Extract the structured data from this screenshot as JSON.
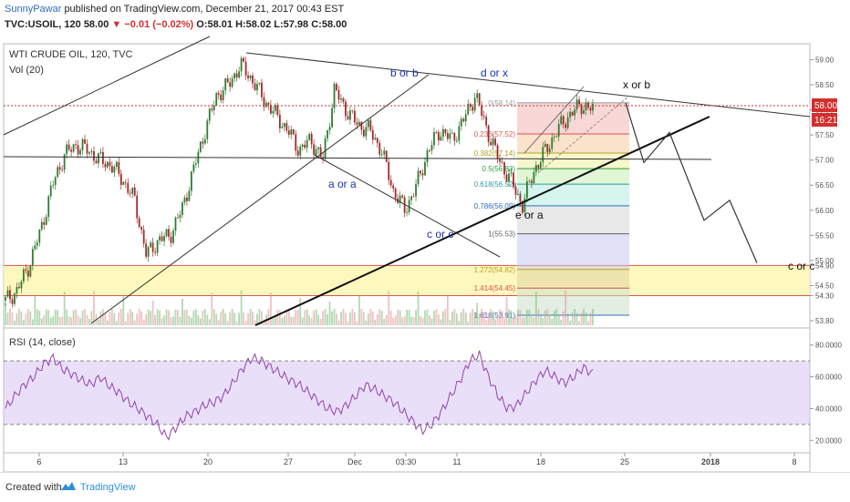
{
  "header": {
    "author": "SunnyPawar",
    "published_text": "published on TradingView.com, December 21, 2017 00:43 EST",
    "symbol_line": "TVC:USOIL, 120",
    "price": "58.00",
    "change": "−0.01 (−0.02%)",
    "ohlc": "O:58.01 H:58.02 L:57.98 C:58.00"
  },
  "footer": {
    "created_with": "Created with",
    "brand": "TradingView"
  },
  "chart_data": [
    {
      "type": "candlestick",
      "title": "WTI CRUDE OIL, 120, TVC",
      "volume_label": "Vol (20)",
      "x_tick_labels": [
        "6",
        "13",
        "20",
        "27",
        "Dec",
        "03:30",
        "11",
        "18",
        "25",
        "2018",
        "8"
      ],
      "y_tick_labels": [
        "59.00",
        "58.50",
        "58.00",
        "57.50",
        "57.00",
        "56.50",
        "56.00",
        "55.50",
        "55.00",
        "54.90",
        "54.50",
        "54.30",
        "53.80"
      ],
      "current_price_label": "58.00",
      "countdown_label": "16:21",
      "ylim": [
        53.8,
        59.1
      ],
      "close_path": [
        54.2,
        54.4,
        54.9,
        55.6,
        56.5,
        57.1,
        57.3,
        57.2,
        57.0,
        56.9,
        56.6,
        56.2,
        55.1,
        55.4,
        55.5,
        56.0,
        56.8,
        57.6,
        58.3,
        58.5,
        58.9,
        58.6,
        58.2,
        57.9,
        57.6,
        57.2,
        57.4,
        57.0,
        58.4,
        58.0,
        57.7,
        57.6,
        57.2,
        56.4,
        56.0,
        56.5,
        57.2,
        57.6,
        57.4,
        57.8,
        58.3,
        57.6,
        57.0,
        56.6,
        56.1,
        56.8,
        57.2,
        57.6,
        57.9,
        58.1,
        58.0
      ],
      "wave_labels": [
        "b or b",
        "d or x",
        "x or b",
        "a or a",
        "c or c",
        "e or a",
        "c or c"
      ],
      "fib_levels": [
        {
          "label": "0(58.14)",
          "value": 58.14
        },
        {
          "label": "0.236(57.52)",
          "value": 57.52
        },
        {
          "label": "0.382(57.14)",
          "value": 57.14
        },
        {
          "label": "0.5(56.83)",
          "value": 56.83
        },
        {
          "label": "0.618(56.52)",
          "value": 56.52
        },
        {
          "label": "0.786(56.09)",
          "value": 56.09
        },
        {
          "label": "1(55.53)",
          "value": 55.53
        },
        {
          "label": "1.272(54.82)",
          "value": 54.82
        },
        {
          "label": "1.414(54.45)",
          "value": 54.45
        },
        {
          "label": "1.618(53.91)",
          "value": 53.91
        }
      ],
      "support_zone": [
        54.3,
        54.9
      ],
      "projection_path": [
        58.14,
        56.95,
        57.55,
        55.8,
        56.2,
        54.95
      ]
    },
    {
      "type": "line",
      "title": "RSI (14, close)",
      "y_tick_labels": [
        "80.0000",
        "60.0000",
        "40.0000",
        "20.0000"
      ],
      "ylim": [
        15,
        85
      ],
      "band": [
        30,
        70
      ],
      "values": [
        40,
        48,
        55,
        60,
        68,
        72,
        65,
        62,
        58,
        55,
        60,
        54,
        50,
        44,
        40,
        35,
        30,
        22,
        28,
        35,
        38,
        42,
        44,
        48,
        56,
        65,
        72,
        70,
        66,
        62,
        58,
        55,
        50,
        45,
        40,
        38,
        42,
        48,
        55,
        52,
        48,
        44,
        38,
        32,
        26,
        30,
        38,
        48,
        58,
        70,
        74,
        60,
        48,
        40,
        42,
        50,
        58,
        64,
        60,
        56,
        60,
        66,
        62
      ]
    }
  ]
}
